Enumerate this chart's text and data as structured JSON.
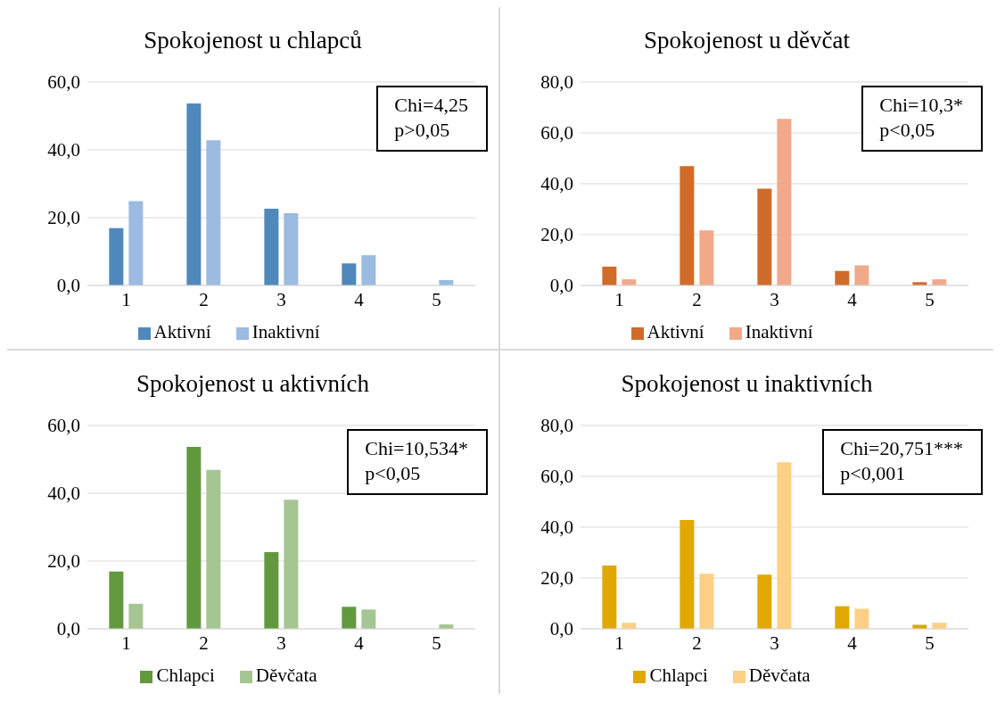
{
  "chart_data": [
    {
      "type": "bar",
      "title": "Spokojenost u chlapců",
      "categories": [
        "1",
        "2",
        "3",
        "4",
        "5"
      ],
      "series": [
        {
          "name": "Aktivní",
          "color": "#4f88bb",
          "values": [
            16.9,
            53.7,
            22.6,
            6.5,
            0
          ]
        },
        {
          "name": "Inaktivní",
          "color": "#9bbbe0",
          "values": [
            24.9,
            42.8,
            21.3,
            8.9,
            1.6
          ]
        }
      ],
      "ylim": [
        0,
        60
      ],
      "yticks": [
        {
          "value": 0,
          "label": "0,0"
        },
        {
          "value": 20,
          "label": "20,0"
        },
        {
          "value": 40,
          "label": "40,0"
        },
        {
          "value": 60,
          "label": "60,0"
        }
      ],
      "grid": "y",
      "legend": "bottom",
      "annotations": [
        "Chi=4,25",
        "p>0,05"
      ]
    },
    {
      "type": "bar",
      "title": "Spokojenost u děvčat",
      "categories": [
        "1",
        "2",
        "3",
        "4",
        "5"
      ],
      "series": [
        {
          "name": "Aktivní",
          "color": "#d06c2a",
          "values": [
            7.4,
            46.9,
            38.1,
            5.7,
            1.3
          ]
        },
        {
          "name": "Inaktivní",
          "color": "#f1a98a",
          "values": [
            2.4,
            21.7,
            65.5,
            7.9,
            2.4
          ]
        }
      ],
      "ylim": [
        0,
        80
      ],
      "yticks": [
        {
          "value": 0,
          "label": "0,0"
        },
        {
          "value": 20,
          "label": "20,0"
        },
        {
          "value": 40,
          "label": "40,0"
        },
        {
          "value": 60,
          "label": "60,0"
        },
        {
          "value": 80,
          "label": "80,0"
        }
      ],
      "grid": "y",
      "legend": "bottom",
      "annotations": [
        "Chi=10,3*",
        "p<0,05"
      ]
    },
    {
      "type": "bar",
      "title": "Spokojenost u aktivních",
      "categories": [
        "1",
        "2",
        "3",
        "4",
        "5"
      ],
      "series": [
        {
          "name": "Chlapci",
          "color": "#62993e",
          "values": [
            16.9,
            53.7,
            22.6,
            6.5,
            0
          ]
        },
        {
          "name": "Děvčata",
          "color": "#a5c692",
          "values": [
            7.4,
            46.9,
            38.1,
            5.7,
            1.3
          ]
        }
      ],
      "ylim": [
        0,
        60
      ],
      "yticks": [
        {
          "value": 0,
          "label": "0,0"
        },
        {
          "value": 20,
          "label": "20,0"
        },
        {
          "value": 40,
          "label": "40,0"
        },
        {
          "value": 60,
          "label": "60,0"
        }
      ],
      "grid": "y",
      "legend": "bottom",
      "annotations": [
        "Chi=10,534*",
        "p<0,05"
      ]
    },
    {
      "type": "bar",
      "title": "Spokojenost u inaktivních",
      "categories": [
        "1",
        "2",
        "3",
        "4",
        "5"
      ],
      "series": [
        {
          "name": "Chlapci",
          "color": "#e0a800",
          "values": [
            24.9,
            42.8,
            21.3,
            8.9,
            1.6
          ]
        },
        {
          "name": "Děvčata",
          "color": "#fdd085",
          "values": [
            2.4,
            21.7,
            65.5,
            7.9,
            2.4
          ]
        }
      ],
      "ylim": [
        0,
        80
      ],
      "yticks": [
        {
          "value": 0,
          "label": "0,0"
        },
        {
          "value": 20,
          "label": "20,0"
        },
        {
          "value": 40,
          "label": "40,0"
        },
        {
          "value": 60,
          "label": "60,0"
        },
        {
          "value": 80,
          "label": "80,0"
        }
      ],
      "grid": "y",
      "legend": "bottom",
      "annotations": [
        "Chi=20,751***",
        "p<0,001"
      ]
    }
  ]
}
